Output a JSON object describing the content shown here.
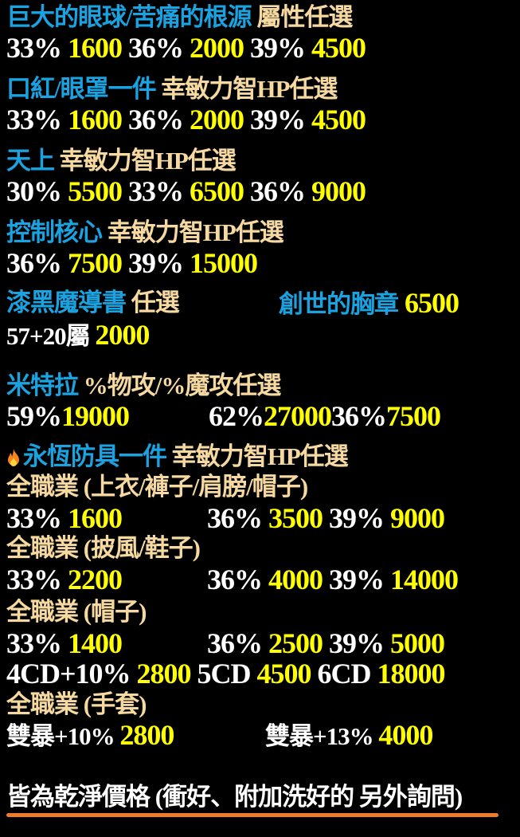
{
  "colors": {
    "b": "#1aa3e0",
    "c": "#f5d9a0",
    "w": "#ffffff",
    "y": "#ffff00",
    "underline": "#f07a2a"
  },
  "lines": [
    {
      "groups": [
        [
          [
            "b",
            "巨大的眼球/苦痛的根源"
          ],
          [
            "c",
            " 屬性任選"
          ]
        ]
      ]
    },
    {
      "groups": [
        [
          [
            "w",
            "33% "
          ],
          [
            "y",
            "1600"
          ],
          [
            "w",
            " 36% "
          ],
          [
            "y",
            "2000"
          ],
          [
            "w",
            " 39% "
          ],
          [
            "y",
            "4500"
          ]
        ]
      ]
    },
    {
      "groups": [
        [
          [
            "b",
            "口紅/眼罩一件"
          ],
          [
            "c",
            " 幸敏力智HP任選"
          ]
        ]
      ]
    },
    {
      "groups": [
        [
          [
            "w",
            "33% "
          ],
          [
            "y",
            "1600"
          ],
          [
            "w",
            " 36% "
          ],
          [
            "y",
            "2000"
          ],
          [
            "w",
            " 39% "
          ],
          [
            "y",
            "4500"
          ]
        ]
      ]
    },
    {
      "groups": [
        [
          [
            "b",
            "天上"
          ],
          [
            "c",
            " 幸敏力智HP任選"
          ]
        ]
      ]
    },
    {
      "groups": [
        [
          [
            "w",
            "30% "
          ],
          [
            "y",
            "5500"
          ],
          [
            "w",
            " 33% "
          ],
          [
            "y",
            "6500"
          ],
          [
            "w",
            " 36% "
          ],
          [
            "y",
            "9000"
          ]
        ]
      ]
    },
    {
      "groups": [
        [
          [
            "b",
            "控制核心"
          ],
          [
            "c",
            " 幸敏力智HP任選"
          ]
        ]
      ]
    },
    {
      "groups": [
        [
          [
            "w",
            "36% "
          ],
          [
            "y",
            "7500"
          ],
          [
            "w",
            " 39% "
          ],
          [
            "y",
            "15000"
          ]
        ]
      ]
    },
    {
      "groups": [
        [
          [
            "b",
            "漆黑魔導書"
          ],
          [
            "c",
            " 任選"
          ]
        ],
        [
          [
            "b",
            "創世的胸章"
          ],
          [
            "y",
            " 6500"
          ]
        ]
      ]
    },
    {
      "groups": [
        [
          [
            "w",
            "57+20屬 "
          ],
          [
            "y",
            "2000"
          ]
        ]
      ]
    },
    {
      "groups": [
        [
          [
            "b",
            "米特拉"
          ],
          [
            "c",
            " %物攻/%魔攻任選"
          ]
        ]
      ]
    },
    {
      "groups": [
        [
          [
            "w",
            "59%"
          ],
          [
            "y",
            "19000"
          ]
        ],
        [
          [
            "w",
            "62%"
          ],
          [
            "y",
            "27000"
          ],
          [
            "w",
            "36%"
          ],
          [
            "y",
            "7500"
          ]
        ]
      ]
    },
    {
      "icon": "fire-icon",
      "groups": [
        [
          [
            "b",
            "永恆防具一件"
          ],
          [
            "c",
            " 幸敏力智HP任選"
          ]
        ]
      ]
    },
    {
      "groups": [
        [
          [
            "c",
            "全職業 (上衣/褲子/肩膀/帽子)"
          ]
        ]
      ]
    },
    {
      "groups": [
        [
          [
            "w",
            "33% "
          ],
          [
            "y",
            "1600"
          ]
        ],
        [
          [
            "w",
            "36% "
          ],
          [
            "y",
            "3500"
          ],
          [
            "w",
            " 39% "
          ],
          [
            "y",
            "9000"
          ]
        ]
      ]
    },
    {
      "groups": [
        [
          [
            "c",
            "全職業 (披風/鞋子)"
          ]
        ]
      ]
    },
    {
      "groups": [
        [
          [
            "w",
            "33% "
          ],
          [
            "y",
            "2200"
          ]
        ],
        [
          [
            "w",
            "36% "
          ],
          [
            "y",
            "4000"
          ],
          [
            "w",
            " 39% "
          ],
          [
            "y",
            "14000"
          ]
        ]
      ]
    },
    {
      "groups": [
        [
          [
            "c",
            "全職業 (帽子)"
          ]
        ]
      ]
    },
    {
      "groups": [
        [
          [
            "w",
            "33% "
          ],
          [
            "y",
            "1400"
          ]
        ],
        [
          [
            "w",
            "36% "
          ],
          [
            "y",
            "2500"
          ],
          [
            "w",
            " 39% "
          ],
          [
            "y",
            "5000"
          ]
        ]
      ]
    },
    {
      "groups": [
        [
          [
            "w",
            "4CD+10% "
          ],
          [
            "y",
            "2800"
          ],
          [
            "w",
            " 5CD "
          ],
          [
            "y",
            "4500"
          ],
          [
            "w",
            " 6CD "
          ],
          [
            "y",
            "18000"
          ]
        ]
      ]
    },
    {
      "groups": [
        [
          [
            "c",
            "全職業 (手套)"
          ]
        ]
      ]
    },
    {
      "groups": [
        [
          [
            "w",
            "雙暴+10% "
          ],
          [
            "y",
            "2800"
          ]
        ],
        [
          [
            "w",
            "雙暴+13% "
          ],
          [
            "y",
            "4000"
          ]
        ]
      ]
    },
    {
      "groups": [
        [
          [
            "w",
            "皆為乾淨價格 (衝好、附加洗好的 另外詢問)"
          ]
        ]
      ]
    }
  ]
}
